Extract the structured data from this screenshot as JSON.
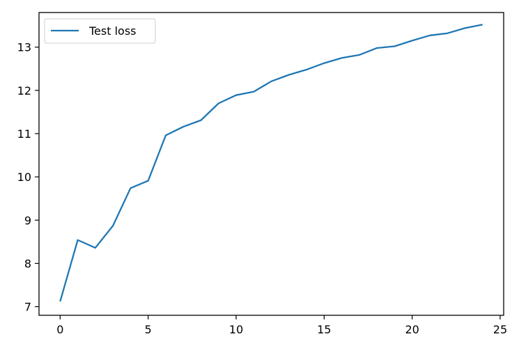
{
  "chart_data": {
    "type": "line",
    "title": "",
    "xlabel": "",
    "ylabel": "",
    "xlim": [
      -1.2,
      25.2
    ],
    "ylim": [
      6.8,
      13.8
    ],
    "xticks": [
      0,
      5,
      10,
      15,
      20,
      25
    ],
    "yticks": [
      7,
      8,
      9,
      10,
      11,
      12,
      13
    ],
    "grid": false,
    "legend_position": "upper-left",
    "series": [
      {
        "name": "Test loss",
        "color": "#1f77b4",
        "x": [
          0,
          1,
          2,
          3,
          4,
          5,
          6,
          7,
          8,
          9,
          10,
          11,
          12,
          13,
          14,
          15,
          16,
          17,
          18,
          19,
          20,
          21,
          22,
          23,
          24
        ],
        "y": [
          7.12,
          8.54,
          8.36,
          8.87,
          9.74,
          9.91,
          10.96,
          11.16,
          11.31,
          11.7,
          11.89,
          11.97,
          12.21,
          12.36,
          12.48,
          12.63,
          12.75,
          12.82,
          12.98,
          13.02,
          13.15,
          13.27,
          13.32,
          13.44,
          13.52
        ]
      }
    ]
  }
}
